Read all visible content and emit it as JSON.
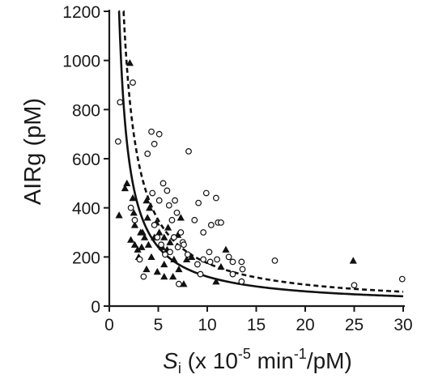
{
  "chart_data": {
    "type": "scatter",
    "title": "",
    "xlabel": {
      "main": "S",
      "sub": "i",
      "rest_a": " (x 10",
      "sup1": "-5",
      "rest_b": " min",
      "sup2": "-1",
      "rest_c": "/pM)"
    },
    "ylabel": "AIRg (pM)",
    "xlim": [
      0,
      30
    ],
    "ylim": [
      0,
      1200
    ],
    "xticks": [
      0,
      5,
      10,
      15,
      20,
      25,
      30
    ],
    "yticks": [
      0,
      200,
      400,
      600,
      800,
      1000,
      1200
    ],
    "grid": false,
    "legend": "none",
    "series": [
      {
        "marker": "filled-triangle",
        "color": "#111111",
        "points": [
          [
            1.6,
            480
          ],
          [
            1.8,
            500
          ],
          [
            1.0,
            370
          ],
          [
            2.1,
            990
          ],
          [
            2.4,
            440
          ],
          [
            2.5,
            380
          ],
          [
            2.6,
            330
          ],
          [
            2.2,
            270
          ],
          [
            2.6,
            250
          ],
          [
            2.9,
            230
          ],
          [
            3.2,
            300
          ],
          [
            3.4,
            300
          ],
          [
            3.6,
            280
          ],
          [
            3.3,
            240
          ],
          [
            3.0,
            200
          ],
          [
            3.8,
            430
          ],
          [
            3.9,
            360
          ],
          [
            4.1,
            400
          ],
          [
            4.0,
            250
          ],
          [
            3.8,
            150
          ],
          [
            4.3,
            200
          ],
          [
            4.6,
            280
          ],
          [
            4.8,
            340
          ],
          [
            5.1,
            300
          ],
          [
            5.4,
            240
          ],
          [
            5.6,
            280
          ],
          [
            5.9,
            230
          ],
          [
            6.0,
            320
          ],
          [
            6.2,
            260
          ],
          [
            5.6,
            170
          ],
          [
            4.9,
            140
          ],
          [
            5.6,
            120
          ],
          [
            6.6,
            190
          ],
          [
            6.5,
            120
          ],
          [
            7.1,
            150
          ],
          [
            7.0,
            290
          ],
          [
            7.3,
            360
          ],
          [
            7.9,
            190
          ],
          [
            8.4,
            200
          ],
          [
            7.6,
            90
          ],
          [
            10.9,
            100
          ],
          [
            11.4,
            160
          ],
          [
            11.9,
            230
          ],
          [
            24.9,
            185
          ]
        ]
      },
      {
        "marker": "open-circle",
        "color": "#111111",
        "points": [
          [
            0.9,
            670
          ],
          [
            1.1,
            830
          ],
          [
            2.4,
            910
          ],
          [
            2.2,
            400
          ],
          [
            2.6,
            350
          ],
          [
            3.1,
            190
          ],
          [
            3.5,
            120
          ],
          [
            3.9,
            620
          ],
          [
            4.3,
            710
          ],
          [
            4.6,
            660
          ],
          [
            5.1,
            700
          ],
          [
            4.4,
            460
          ],
          [
            5.1,
            430
          ],
          [
            5.5,
            500
          ],
          [
            5.9,
            470
          ],
          [
            6.1,
            410
          ],
          [
            6.4,
            350
          ],
          [
            6.7,
            430
          ],
          [
            6.9,
            380
          ],
          [
            7.3,
            300
          ],
          [
            4.6,
            330
          ],
          [
            4.9,
            280
          ],
          [
            5.3,
            250
          ],
          [
            5.7,
            210
          ],
          [
            6.2,
            220
          ],
          [
            6.6,
            280
          ],
          [
            7.0,
            240
          ],
          [
            7.5,
            260
          ],
          [
            8.1,
            630
          ],
          [
            9.1,
            420
          ],
          [
            8.7,
            350
          ],
          [
            9.6,
            300
          ],
          [
            9.9,
            460
          ],
          [
            10.4,
            330
          ],
          [
            10.9,
            440
          ],
          [
            11.1,
            340
          ],
          [
            11.4,
            340
          ],
          [
            10.2,
            220
          ],
          [
            9.6,
            190
          ],
          [
            12.2,
            200
          ],
          [
            12.6,
            180
          ],
          [
            13.5,
            180
          ],
          [
            13.6,
            150
          ],
          [
            12.6,
            130
          ],
          [
            9.0,
            170
          ],
          [
            7.6,
            250
          ],
          [
            8.0,
            210
          ],
          [
            7.1,
            90
          ],
          [
            10.3,
            180
          ],
          [
            9.3,
            130
          ],
          [
            11.0,
            190
          ],
          [
            13.5,
            100
          ],
          [
            16.9,
            185
          ],
          [
            25.0,
            85
          ],
          [
            29.9,
            110
          ]
        ]
      }
    ],
    "curves": [
      {
        "style": "solid",
        "k": 1200,
        "x_start": 0.95,
        "x_end": 30
      },
      {
        "style": "dashed",
        "k": 1750,
        "x_start": 1.45,
        "x_end": 30
      }
    ]
  }
}
